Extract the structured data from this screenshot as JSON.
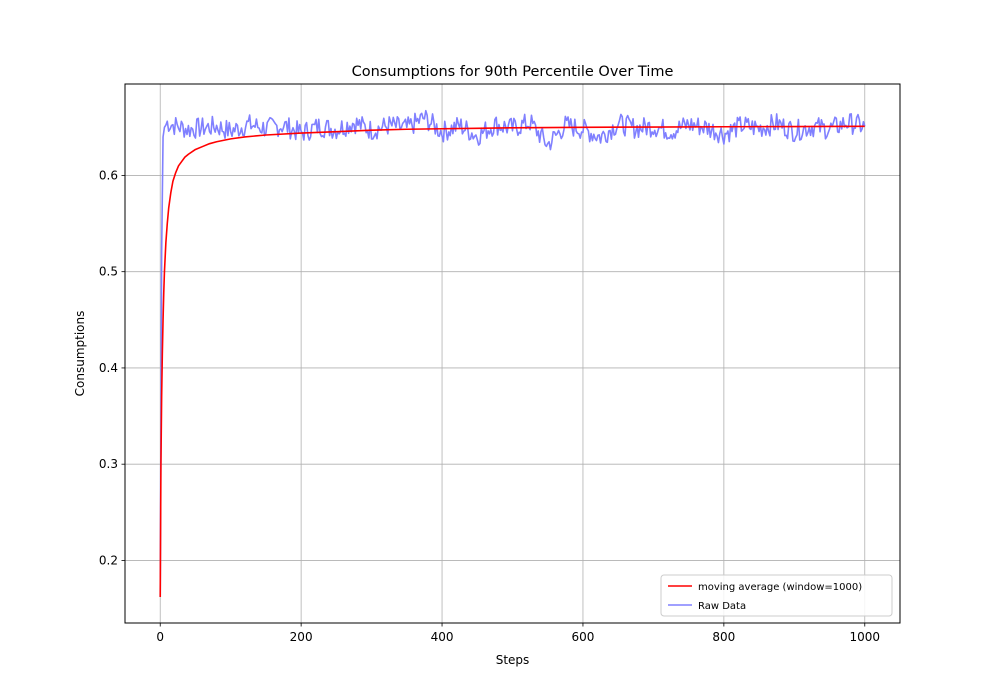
{
  "chart_data": {
    "type": "line",
    "title": "Consumptions for 90th Percentile Over Time",
    "xlabel": "Steps",
    "ylabel": "Consumptions",
    "xlim": [
      -50,
      1050
    ],
    "ylim": [
      0.135,
      0.695
    ],
    "xticks": [
      0,
      200,
      400,
      600,
      800,
      1000
    ],
    "yticks": [
      0.2,
      0.3,
      0.4,
      0.5,
      0.6
    ],
    "xtick_labels": [
      "0",
      "200",
      "400",
      "600",
      "800",
      "1000"
    ],
    "ytick_labels": [
      "0.2",
      "0.3",
      "0.4",
      "0.5",
      "0.6"
    ],
    "grid": true,
    "legend_placement": "lower-right",
    "series": [
      {
        "name": "moving average (window=1000)",
        "color": "#ff0000",
        "x": [
          0,
          1,
          2,
          3,
          4,
          5,
          6,
          8,
          10,
          12,
          15,
          18,
          22,
          26,
          30,
          35,
          40,
          50,
          60,
          70,
          80,
          100,
          120,
          150,
          200,
          250,
          300,
          350,
          400,
          450,
          500,
          600,
          700,
          800,
          900,
          1000
        ],
        "y": [
          0.162,
          0.3,
          0.37,
          0.415,
          0.45,
          0.478,
          0.5,
          0.53,
          0.55,
          0.566,
          0.582,
          0.594,
          0.603,
          0.61,
          0.614,
          0.619,
          0.622,
          0.627,
          0.63,
          0.633,
          0.635,
          0.638,
          0.64,
          0.642,
          0.644,
          0.6455,
          0.647,
          0.648,
          0.6485,
          0.649,
          0.6495,
          0.65,
          0.6503,
          0.6506,
          0.6508,
          0.651
        ]
      },
      {
        "name": "Raw Data",
        "color": "#8080ff",
        "x": [
          0,
          2,
          4,
          6,
          10,
          20,
          40,
          80,
          100,
          125,
          150,
          175,
          200,
          225,
          250,
          275,
          300,
          325,
          350,
          375,
          400,
          425,
          450,
          475,
          500,
          525,
          550,
          575,
          600,
          625,
          650,
          675,
          700,
          725,
          750,
          775,
          800,
          825,
          850,
          875,
          900,
          925,
          950,
          975,
          1000
        ],
        "y": [
          0.162,
          0.52,
          0.64,
          0.65,
          0.655,
          0.652,
          0.648,
          0.651,
          0.646,
          0.653,
          0.649,
          0.652,
          0.644,
          0.651,
          0.648,
          0.655,
          0.647,
          0.652,
          0.649,
          0.66,
          0.645,
          0.652,
          0.641,
          0.653,
          0.649,
          0.655,
          0.632,
          0.652,
          0.648,
          0.64,
          0.654,
          0.649,
          0.651,
          0.646,
          0.653,
          0.65,
          0.643,
          0.652,
          0.649,
          0.654,
          0.646,
          0.651,
          0.648,
          0.655,
          0.651
        ]
      }
    ]
  }
}
